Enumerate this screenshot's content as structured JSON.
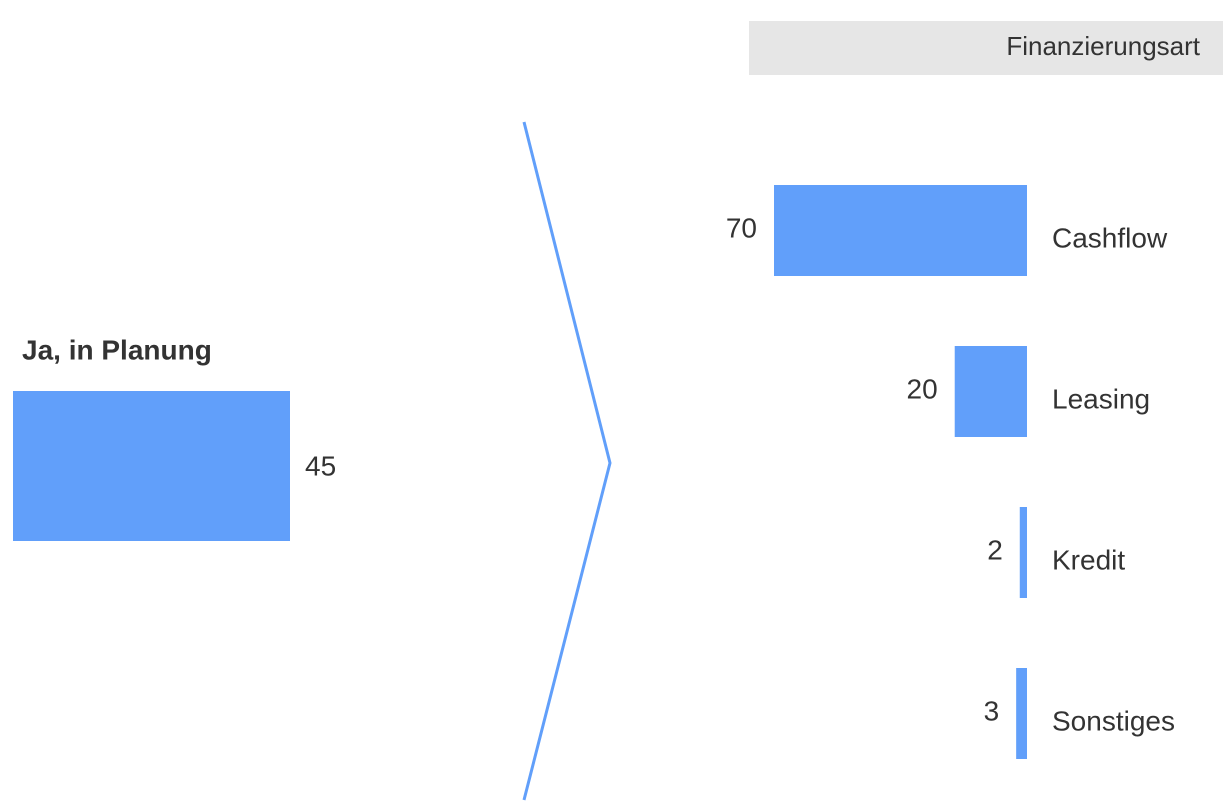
{
  "chart_data": [
    {
      "type": "bar",
      "orientation": "horizontal",
      "color": "#619ffa",
      "categories": [
        "Ja, in Planung"
      ],
      "values": [
        45
      ]
    },
    {
      "type": "bar",
      "orientation": "horizontal",
      "color": "#619ffa",
      "title": "Finanzierungsart",
      "categories": [
        "Cashflow",
        "Leasing",
        "Kredit",
        "Sonstiges"
      ],
      "values": [
        70,
        20,
        2,
        3
      ]
    }
  ]
}
